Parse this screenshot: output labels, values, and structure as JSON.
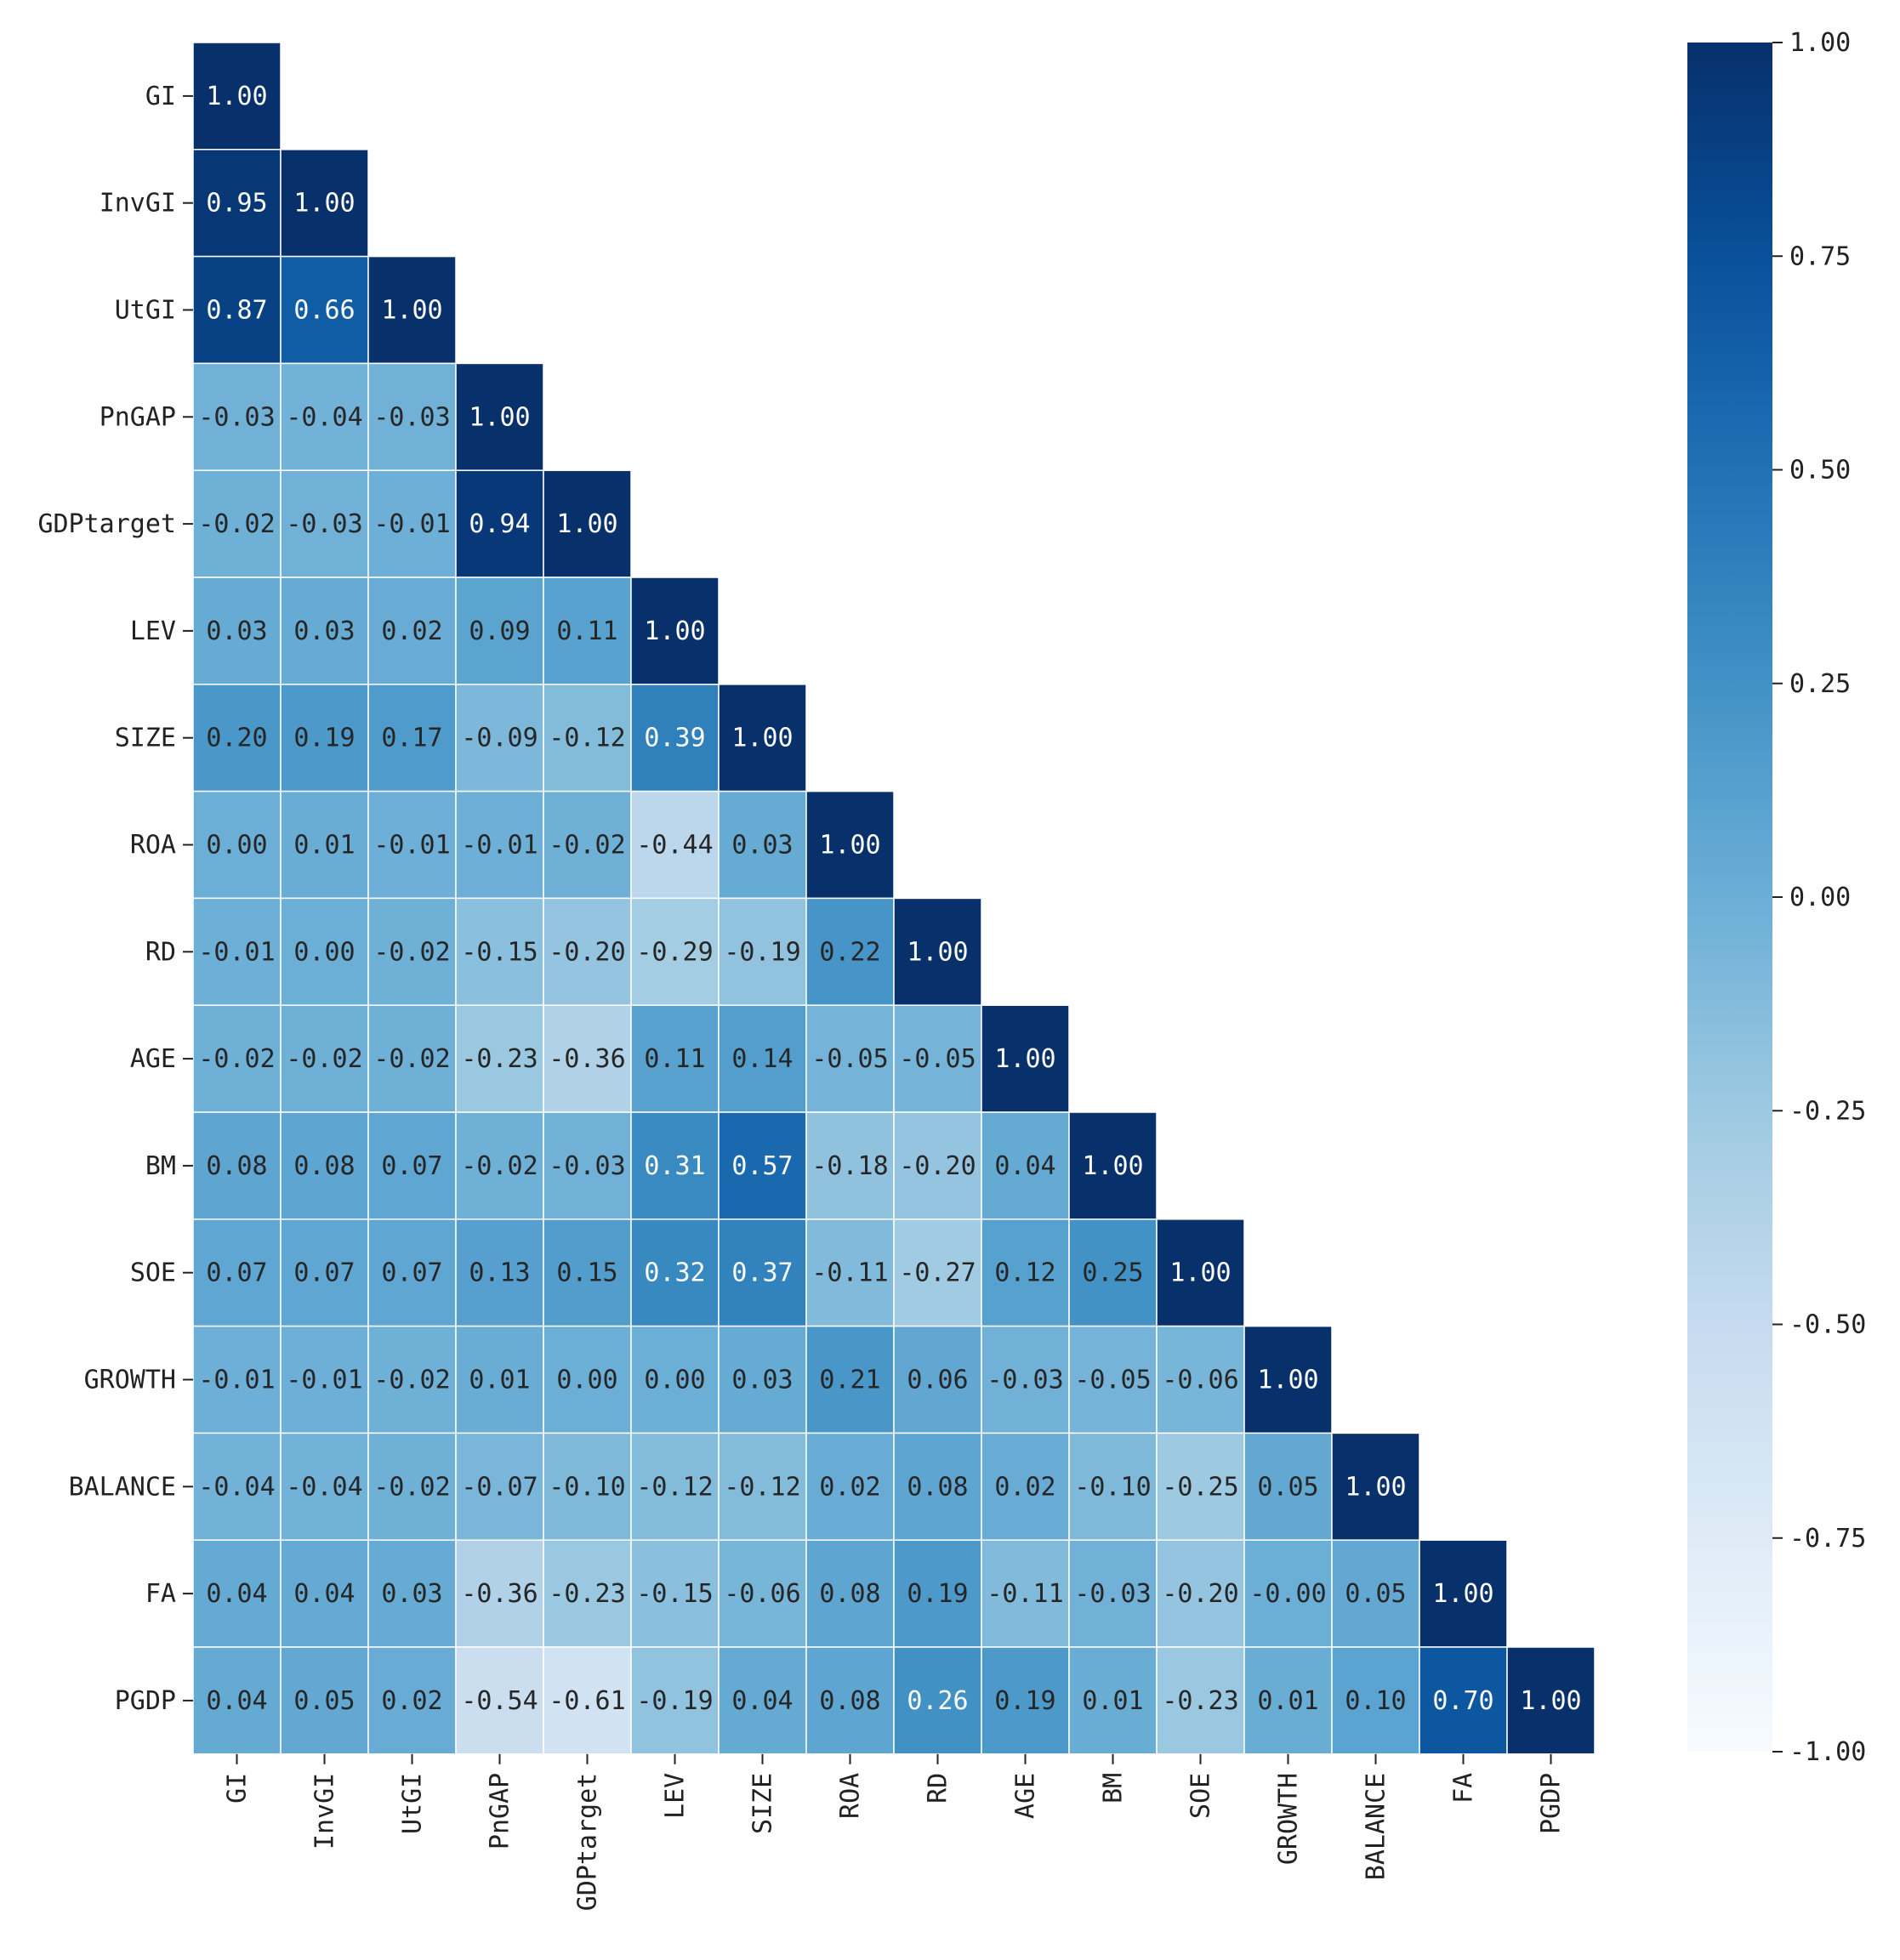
{
  "chart_data": {
    "type": "heatmap",
    "title": "",
    "colormap": "Blues",
    "vmin": -1.0,
    "vmax": 1.0,
    "variables": [
      "GI",
      "InvGI",
      "UtGI",
      "PnGAP",
      "GDPtarget",
      "LEV",
      "SIZE",
      "ROA",
      "RD",
      "AGE",
      "BM",
      "SOE",
      "GROWTH",
      "BALANCE",
      "FA",
      "PGDP"
    ],
    "matrix_lower": [
      [
        "1.00"
      ],
      [
        "0.95",
        "1.00"
      ],
      [
        "0.87",
        "0.66",
        "1.00"
      ],
      [
        "-0.03",
        "-0.04",
        "-0.03",
        "1.00"
      ],
      [
        "-0.02",
        "-0.03",
        "-0.01",
        "0.94",
        "1.00"
      ],
      [
        "0.03",
        "0.03",
        "0.02",
        "0.09",
        "0.11",
        "1.00"
      ],
      [
        "0.20",
        "0.19",
        "0.17",
        "-0.09",
        "-0.12",
        "0.39",
        "1.00"
      ],
      [
        "0.00",
        "0.01",
        "-0.01",
        "-0.01",
        "-0.02",
        "-0.44",
        "0.03",
        "1.00"
      ],
      [
        "-0.01",
        "0.00",
        "-0.02",
        "-0.15",
        "-0.20",
        "-0.29",
        "-0.19",
        "0.22",
        "1.00"
      ],
      [
        "-0.02",
        "-0.02",
        "-0.02",
        "-0.23",
        "-0.36",
        "0.11",
        "0.14",
        "-0.05",
        "-0.05",
        "1.00"
      ],
      [
        "0.08",
        "0.08",
        "0.07",
        "-0.02",
        "-0.03",
        "0.31",
        "0.57",
        "-0.18",
        "-0.20",
        "0.04",
        "1.00"
      ],
      [
        "0.07",
        "0.07",
        "0.07",
        "0.13",
        "0.15",
        "0.32",
        "0.37",
        "-0.11",
        "-0.27",
        "0.12",
        "0.25",
        "1.00"
      ],
      [
        "-0.01",
        "-0.01",
        "-0.02",
        "0.01",
        "0.00",
        "0.00",
        "0.03",
        "0.21",
        "0.06",
        "-0.03",
        "-0.05",
        "-0.06",
        "1.00"
      ],
      [
        "-0.04",
        "-0.04",
        "-0.02",
        "-0.07",
        "-0.10",
        "-0.12",
        "-0.12",
        "0.02",
        "0.08",
        "0.02",
        "-0.10",
        "-0.25",
        "0.05",
        "1.00"
      ],
      [
        "0.04",
        "0.04",
        "0.03",
        "-0.36",
        "-0.23",
        "-0.15",
        "-0.06",
        "0.08",
        "0.19",
        "-0.11",
        "-0.03",
        "-0.20",
        "-0.00",
        "0.05",
        "1.00"
      ],
      [
        "0.04",
        "0.05",
        "0.02",
        "-0.54",
        "-0.61",
        "-0.19",
        "0.04",
        "0.08",
        "0.26",
        "0.19",
        "0.01",
        "-0.23",
        "0.01",
        "0.10",
        "0.70",
        "1.00"
      ]
    ],
    "colorbar": {
      "ticks": [
        "1.00",
        "0.75",
        "0.50",
        "0.25",
        "0.00",
        "-0.25",
        "-0.50",
        "-0.75",
        "-1.00"
      ]
    }
  }
}
